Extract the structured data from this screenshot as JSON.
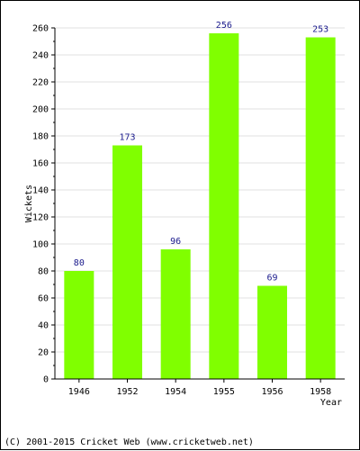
{
  "chart_data": {
    "type": "bar",
    "categories": [
      "1946",
      "1952",
      "1954",
      "1955",
      "1956",
      "1958"
    ],
    "values": [
      80,
      173,
      96,
      256,
      69,
      253
    ],
    "title": "",
    "xlabel": "Year",
    "ylabel": "Wickets",
    "ylim": [
      0,
      260
    ],
    "y_ticks": [
      0,
      20,
      40,
      60,
      80,
      100,
      120,
      140,
      160,
      180,
      200,
      220,
      240,
      260
    ],
    "grid": true,
    "legend": "none",
    "data_labels": true,
    "bar_color": "#80ff00",
    "label_color": "#1a1a8c"
  },
  "footer": {
    "copyright": "(C) 2001-2015 Cricket Web (www.cricketweb.net)"
  }
}
